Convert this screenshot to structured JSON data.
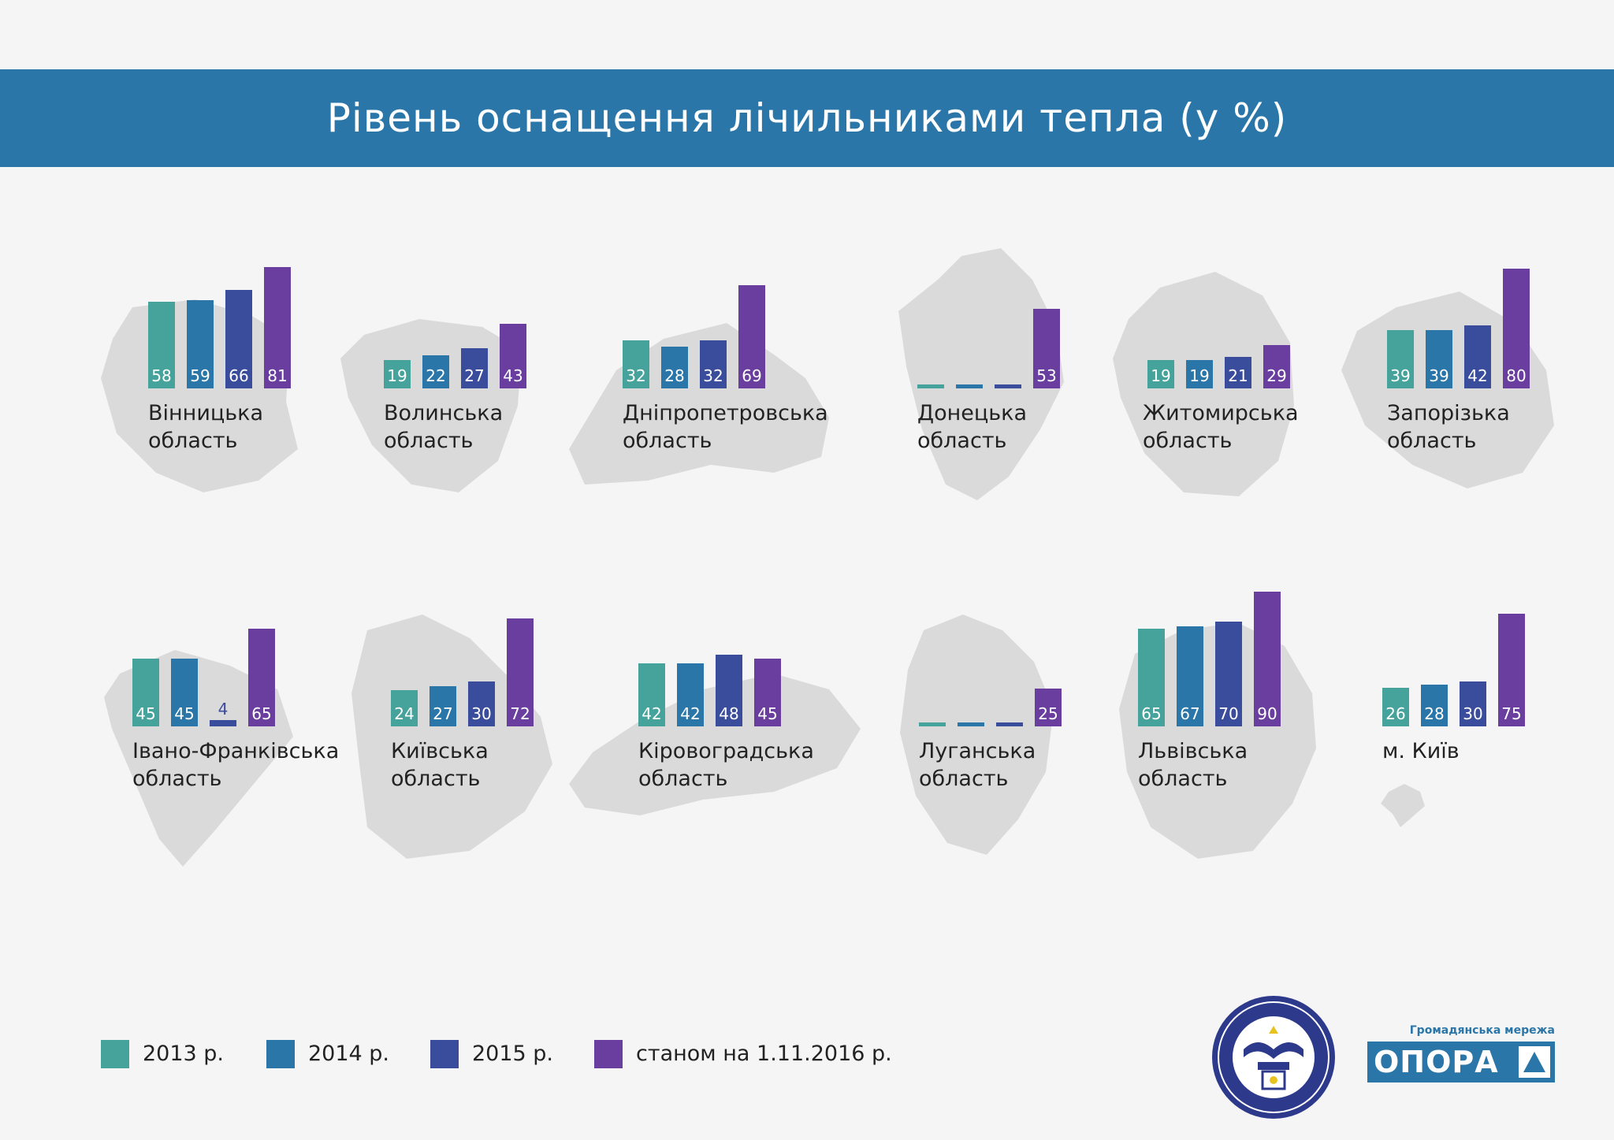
{
  "header": {
    "title": "Рівень оснащення лічильниками тепла (у %)"
  },
  "colors": {
    "y2013": "#45a39b",
    "y2014": "#2a76a8",
    "y2015": "#3a4c9c",
    "y2016": "#6a3e9e",
    "map_shape": "#dadada",
    "banner": "#2a76a8"
  },
  "chart_data": {
    "type": "bar",
    "title": "Рівень оснащення лічильниками тепла (у %)",
    "series_names": [
      "2013 р.",
      "2014 р.",
      "2015 р.",
      "станом на 1.11.2016 р."
    ],
    "ylim": [
      0,
      100
    ],
    "legend_position": "bottom-left",
    "regions": [
      {
        "name": "Вінницька область",
        "line1": "Вінницька",
        "line2": "область",
        "values": [
          58,
          59,
          66,
          81
        ],
        "labels": [
          "58",
          "59",
          "66",
          "81"
        ]
      },
      {
        "name": "Волинська область",
        "line1": "Волинська",
        "line2": "область",
        "values": [
          19,
          22,
          27,
          43
        ],
        "labels": [
          "19",
          "22",
          "27",
          "43"
        ]
      },
      {
        "name": "Дніпропетровська область",
        "line1": "Дніпропетровська",
        "line2": "область",
        "values": [
          32,
          28,
          32,
          69
        ],
        "labels": [
          "32",
          "28",
          "32",
          "69"
        ]
      },
      {
        "name": "Донецька область",
        "line1": "Донецька",
        "line2": "область",
        "values": [
          null,
          null,
          null,
          53
        ],
        "labels": [
          "",
          "",
          "",
          "53"
        ]
      },
      {
        "name": "Житомирська область",
        "line1": "Житомирська",
        "line2": "область",
        "values": [
          19,
          19,
          21,
          29
        ],
        "labels": [
          "19",
          "19",
          "21",
          "29"
        ]
      },
      {
        "name": "Запорізька область",
        "line1": "Запорізька",
        "line2": "область",
        "values": [
          39,
          39,
          42,
          80
        ],
        "labels": [
          "39",
          "39",
          "42",
          "80"
        ]
      },
      {
        "name": "Івано-Франківська область",
        "line1": "Івано-Франківська",
        "line2": "область",
        "values": [
          45,
          45,
          4,
          65
        ],
        "labels": [
          "45",
          "45",
          "4",
          "65"
        ]
      },
      {
        "name": "Київська область",
        "line1": "Київська",
        "line2": "область",
        "values": [
          24,
          27,
          30,
          72
        ],
        "labels": [
          "24",
          "27",
          "30",
          "72"
        ]
      },
      {
        "name": "Кіровоградська область",
        "line1": "Кіровоградська",
        "line2": "область",
        "values": [
          42,
          42,
          48,
          45
        ],
        "labels": [
          "42",
          "42",
          "48",
          "45"
        ]
      },
      {
        "name": "Луганська область",
        "line1": "Луганська",
        "line2": "область",
        "values": [
          null,
          null,
          null,
          25
        ],
        "labels": [
          "",
          "",
          "",
          "25"
        ]
      },
      {
        "name": "Львівська область",
        "line1": "Львівська",
        "line2": "область",
        "values": [
          65,
          67,
          70,
          90
        ],
        "labels": [
          "65",
          "67",
          "70",
          "90"
        ]
      },
      {
        "name": "м. Київ",
        "line1": "м. Київ",
        "line2": "",
        "values": [
          26,
          28,
          30,
          75
        ],
        "labels": [
          "26",
          "28",
          "30",
          "75"
        ]
      }
    ]
  },
  "legend": {
    "items": [
      {
        "label": "2013 р."
      },
      {
        "label": "2014 р."
      },
      {
        "label": "2015 р."
      },
      {
        "label": "станом на 1.11.2016 р."
      }
    ]
  },
  "logos": {
    "nkrekp_icon": "nkrekp-seal-icon",
    "opora_tagline": "Громадянська мережа",
    "opora_name": "ОПОРА"
  }
}
